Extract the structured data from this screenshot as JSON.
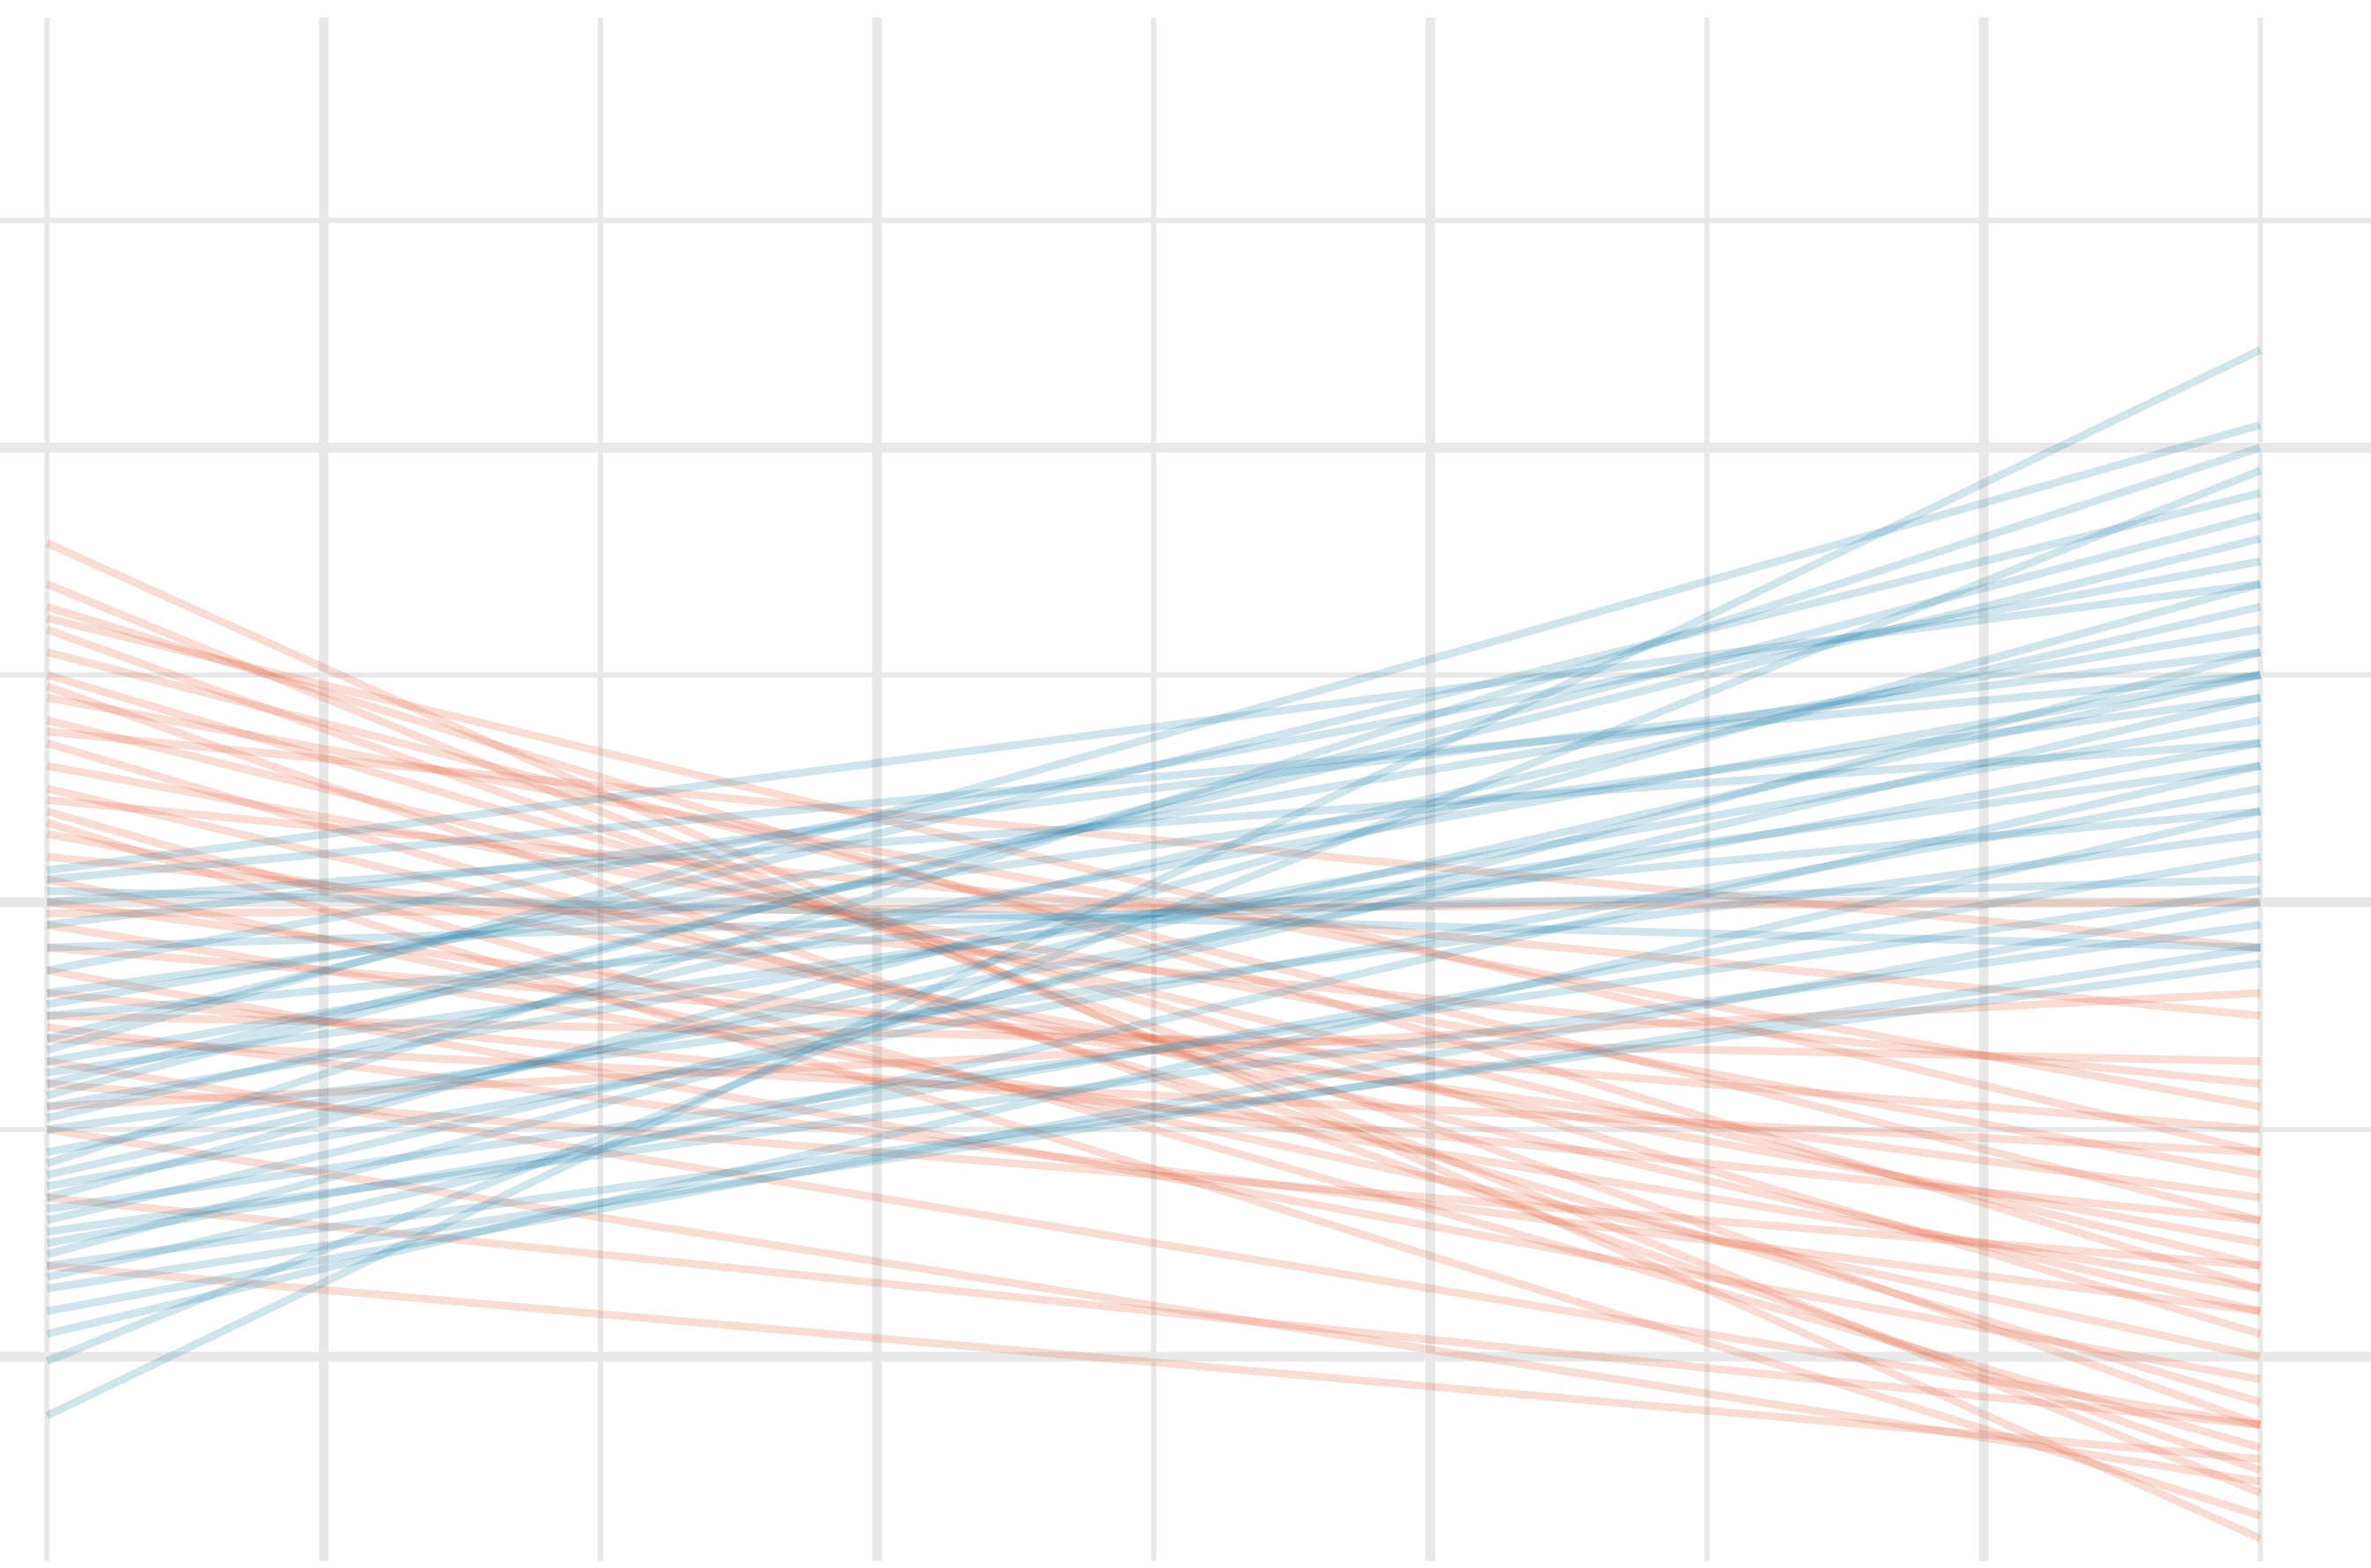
{
  "chart_data": {
    "type": "line",
    "x": [
      0,
      8
    ],
    "xlim": [
      -0.17,
      8.4
    ],
    "ylim": [
      -0.93,
      5.97
    ],
    "xticks": [
      1,
      3,
      5,
      7
    ],
    "xminorticks": [
      0,
      2,
      4,
      6,
      8
    ],
    "yticks": [
      0,
      2,
      4
    ],
    "yminorticks": [
      1,
      3,
      5
    ],
    "grid": true,
    "series": [
      {
        "color": "#e3633f",
        "values": [
          3.58,
          -0.8
        ]
      },
      {
        "color": "#e3633f",
        "values": [
          3.4,
          -0.6
        ]
      },
      {
        "color": "#e3633f",
        "values": [
          3.3,
          0.3
        ]
      },
      {
        "color": "#e3633f",
        "values": [
          3.2,
          -0.3
        ]
      },
      {
        "color": "#e3633f",
        "values": [
          3.1,
          0.6
        ]
      },
      {
        "color": "#e3633f",
        "values": [
          3.0,
          0.1
        ]
      },
      {
        "color": "#e3633f",
        "values": [
          2.95,
          -0.5
        ]
      },
      {
        "color": "#e3633f",
        "values": [
          2.9,
          1.1
        ]
      },
      {
        "color": "#e3633f",
        "values": [
          2.8,
          0.4
        ]
      },
      {
        "color": "#e3633f",
        "values": [
          2.7,
          -0.2
        ]
      },
      {
        "color": "#e3633f",
        "values": [
          2.6,
          0.8
        ]
      },
      {
        "color": "#e3633f",
        "values": [
          2.5,
          0.2
        ]
      },
      {
        "color": "#e3633f",
        "values": [
          2.45,
          1.5
        ]
      },
      {
        "color": "#e3633f",
        "values": [
          2.4,
          -0.4
        ]
      },
      {
        "color": "#e3633f",
        "values": [
          2.3,
          0.5
        ]
      },
      {
        "color": "#e3633f",
        "values": [
          2.2,
          1.2
        ]
      },
      {
        "color": "#e3633f",
        "values": [
          2.1,
          0.0
        ]
      },
      {
        "color": "#e3633f",
        "values": [
          2.0,
          0.7
        ]
      },
      {
        "color": "#e3633f",
        "values": [
          1.95,
          2.0
        ]
      },
      {
        "color": "#e3633f",
        "values": [
          1.9,
          0.3
        ]
      },
      {
        "color": "#e3633f",
        "values": [
          1.8,
          1.0
        ]
      },
      {
        "color": "#e3633f",
        "values": [
          1.7,
          -0.1
        ]
      },
      {
        "color": "#e3633f",
        "values": [
          1.6,
          0.6
        ]
      },
      {
        "color": "#e3633f",
        "values": [
          1.5,
          1.3
        ]
      },
      {
        "color": "#e3633f",
        "values": [
          1.45,
          0.2
        ]
      },
      {
        "color": "#e3633f",
        "values": [
          1.4,
          0.9
        ]
      },
      {
        "color": "#e3633f",
        "values": [
          1.3,
          -0.3
        ]
      },
      {
        "color": "#e3633f",
        "values": [
          1.2,
          0.4
        ]
      },
      {
        "color": "#e3633f",
        "values": [
          1.1,
          1.6
        ]
      },
      {
        "color": "#e3633f",
        "values": [
          1.0,
          -0.55
        ]
      },
      {
        "color": "#e3633f",
        "values": [
          0.4,
          -0.45
        ]
      },
      {
        "color": "#e3633f",
        "values": [
          0.7,
          -0.3
        ]
      },
      {
        "color": "#e3633f",
        "values": [
          2.75,
          1.8
        ]
      },
      {
        "color": "#e3633f",
        "values": [
          3.25,
          0.9
        ]
      },
      {
        "color": "#e3633f",
        "values": [
          2.35,
          -0.7
        ]
      },
      {
        "color": "#2a86ad",
        "values": [
          -0.26,
          4.43
        ]
      },
      {
        "color": "#2a86ad",
        "values": [
          -0.02,
          3.9
        ]
      },
      {
        "color": "#2a86ad",
        "values": [
          0.1,
          2.4
        ]
      },
      {
        "color": "#2a86ad",
        "values": [
          0.2,
          2.0
        ]
      },
      {
        "color": "#2a86ad",
        "values": [
          0.3,
          1.8
        ]
      },
      {
        "color": "#2a86ad",
        "values": [
          0.35,
          2.6
        ]
      },
      {
        "color": "#2a86ad",
        "values": [
          0.45,
          3.1
        ]
      },
      {
        "color": "#2a86ad",
        "values": [
          0.5,
          2.2
        ]
      },
      {
        "color": "#2a86ad",
        "values": [
          0.55,
          1.9
        ]
      },
      {
        "color": "#2a86ad",
        "values": [
          0.6,
          2.9
        ]
      },
      {
        "color": "#2a86ad",
        "values": [
          0.7,
          3.4
        ]
      },
      {
        "color": "#2a86ad",
        "values": [
          0.75,
          2.5
        ]
      },
      {
        "color": "#2a86ad",
        "values": [
          0.8,
          3.0
        ]
      },
      {
        "color": "#2a86ad",
        "values": [
          0.9,
          2.7
        ]
      },
      {
        "color": "#2a86ad",
        "values": [
          1.0,
          2.3
        ]
      },
      {
        "color": "#2a86ad",
        "values": [
          1.05,
          3.3
        ]
      },
      {
        "color": "#2a86ad",
        "values": [
          1.1,
          2.8
        ]
      },
      {
        "color": "#2a86ad",
        "values": [
          1.2,
          3.6
        ]
      },
      {
        "color": "#2a86ad",
        "values": [
          1.25,
          2.6
        ]
      },
      {
        "color": "#2a86ad",
        "values": [
          1.3,
          3.0
        ]
      },
      {
        "color": "#2a86ad",
        "values": [
          1.4,
          3.8
        ]
      },
      {
        "color": "#2a86ad",
        "values": [
          1.5,
          2.4
        ]
      },
      {
        "color": "#2a86ad",
        "values": [
          1.55,
          3.2
        ]
      },
      {
        "color": "#2a86ad",
        "values": [
          1.6,
          2.9
        ]
      },
      {
        "color": "#2a86ad",
        "values": [
          1.7,
          3.5
        ]
      },
      {
        "color": "#2a86ad",
        "values": [
          1.8,
          2.1
        ]
      },
      {
        "color": "#2a86ad",
        "values": [
          1.9,
          3.1
        ]
      },
      {
        "color": "#2a86ad",
        "values": [
          2.0,
          2.7
        ]
      },
      {
        "color": "#2a86ad",
        "values": [
          2.1,
          3.0
        ]
      },
      {
        "color": "#2a86ad",
        "values": [
          2.14,
          3.4
        ]
      },
      {
        "color": "#2a86ad",
        "values": [
          0.4,
          1.73
        ]
      },
      {
        "color": "#2a86ad",
        "values": [
          0.65,
          2.05
        ]
      },
      {
        "color": "#2a86ad",
        "values": [
          1.35,
          4.1
        ]
      },
      {
        "color": "#2a86ad",
        "values": [
          0.85,
          4.0
        ]
      },
      {
        "color": "#2a86ad",
        "values": [
          1.15,
          3.7
        ]
      },
      {
        "color": "#2a86ad",
        "values": [
          2.05,
          1.8
        ]
      }
    ]
  }
}
